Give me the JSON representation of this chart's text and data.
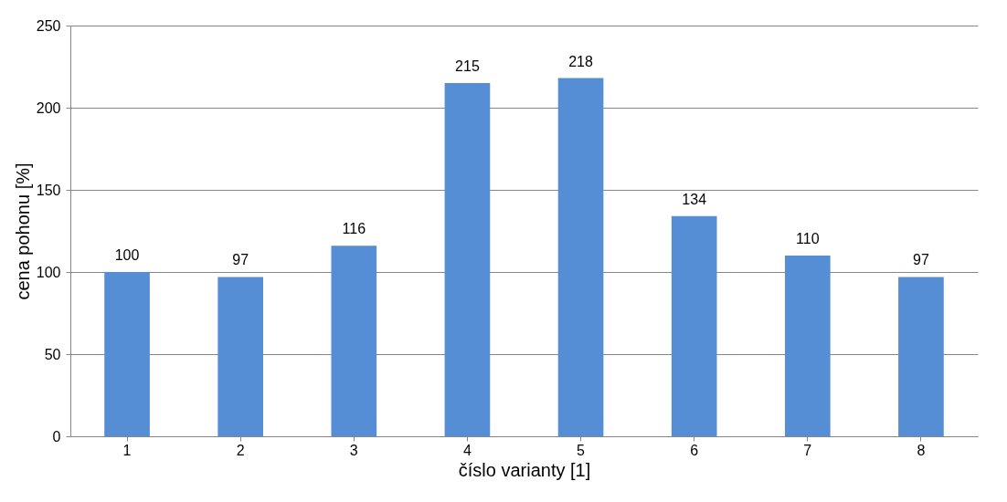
{
  "chart_data": {
    "type": "bar",
    "xlabel": "číslo varianty [1]",
    "ylabel": "cena pohonu [%]",
    "categories": [
      "1",
      "2",
      "3",
      "4",
      "5",
      "6",
      "7",
      "8"
    ],
    "values": [
      100,
      97,
      116,
      215,
      218,
      134,
      110,
      97
    ],
    "color": "#558ed5",
    "ylim": [
      0,
      250
    ],
    "yticks": [
      0,
      50,
      100,
      150,
      200,
      250
    ],
    "grid": "y",
    "data_labels": true
  }
}
